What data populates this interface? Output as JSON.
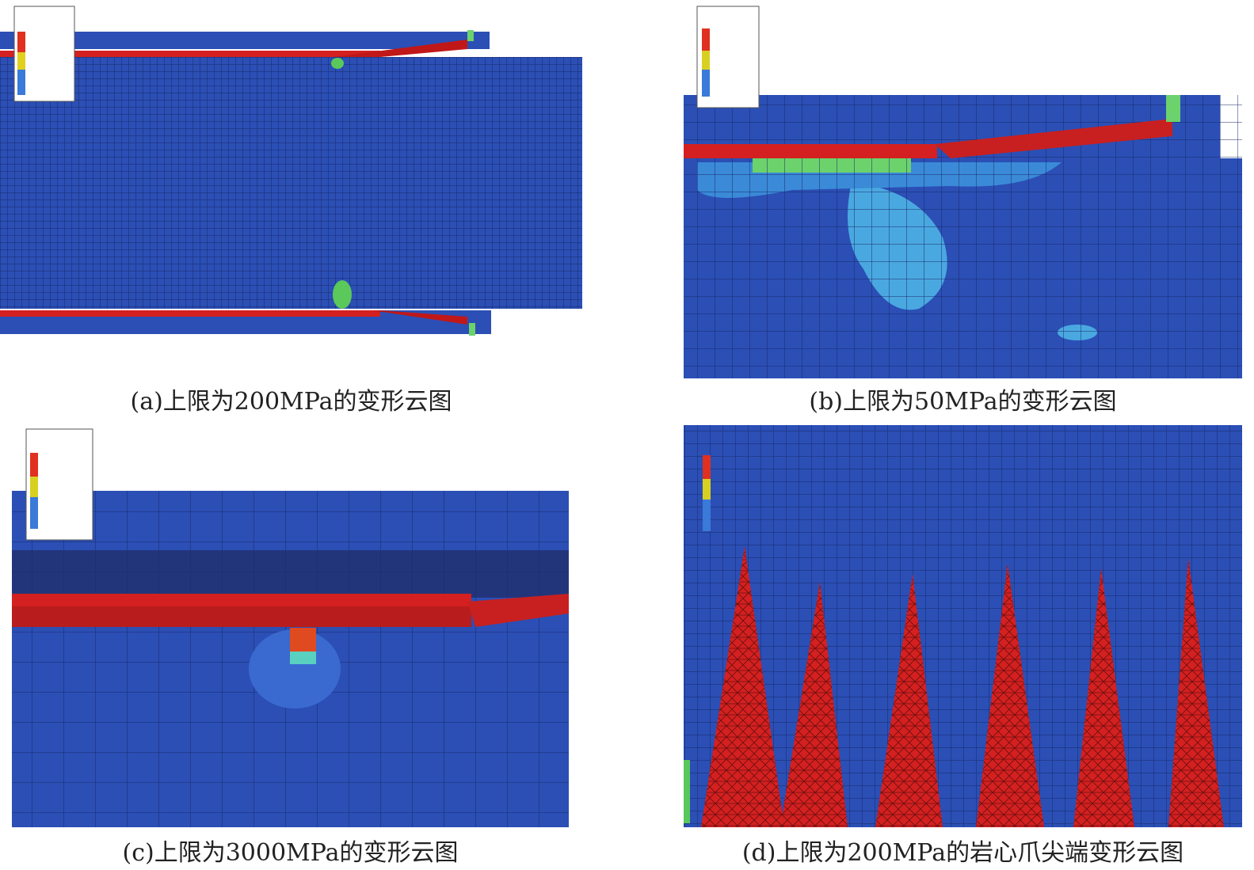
{
  "panels": [
    {
      "caption": "(a)上限为200MPa的变形云图"
    },
    {
      "caption": "(b)上限为50MPa的变形云图"
    },
    {
      "caption": "(c)上限为3000MPa的变形云图"
    },
    {
      "caption": "(d)上限为200MPa的岩心爪尖端变形云图"
    }
  ]
}
